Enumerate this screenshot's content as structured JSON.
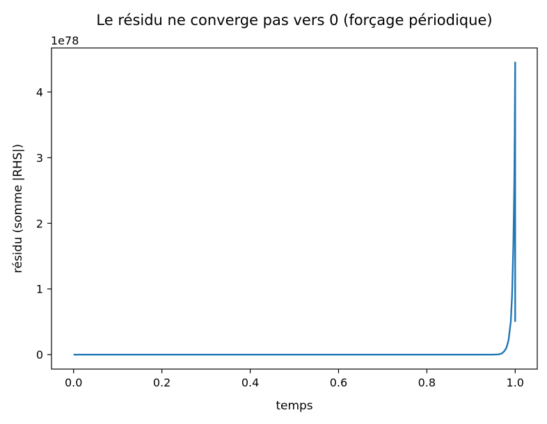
{
  "chart_data": {
    "type": "line",
    "title": "Le résidu ne converge pas vers 0 (forçage périodique)",
    "xlabel": "temps",
    "ylabel": "résidu (somme |RHS|)",
    "y_offset_label": "1e78",
    "xlim": [
      -0.05,
      1.05
    ],
    "ylim": [
      -0.22,
      4.67
    ],
    "y_scale_note": "values in units of 1e78",
    "xticks": [
      0.0,
      0.2,
      0.4,
      0.6,
      0.8,
      1.0
    ],
    "xtick_labels": [
      "0.0",
      "0.2",
      "0.4",
      "0.6",
      "0.8",
      "1.0"
    ],
    "yticks": [
      0,
      1,
      2,
      3,
      4
    ],
    "ytick_labels": [
      "0",
      "1",
      "2",
      "3",
      "4"
    ],
    "grid": false,
    "color": "#1f77b4",
    "series": [
      {
        "x": [
          0.0,
          0.1,
          0.2,
          0.3,
          0.4,
          0.5,
          0.6,
          0.7,
          0.8,
          0.9,
          0.95,
          0.96,
          0.965,
          0.97,
          0.975,
          0.98,
          0.985,
          0.99,
          0.993,
          0.996,
          0.998,
          0.999,
          1.0,
          1.0
        ],
        "y": [
          0,
          0,
          0,
          0,
          0,
          0,
          0,
          0,
          0,
          0,
          0.0,
          0.003,
          0.008,
          0.02,
          0.05,
          0.1,
          0.22,
          0.5,
          0.9,
          1.7,
          2.6,
          3.4,
          4.45,
          0.5
        ]
      }
    ]
  }
}
